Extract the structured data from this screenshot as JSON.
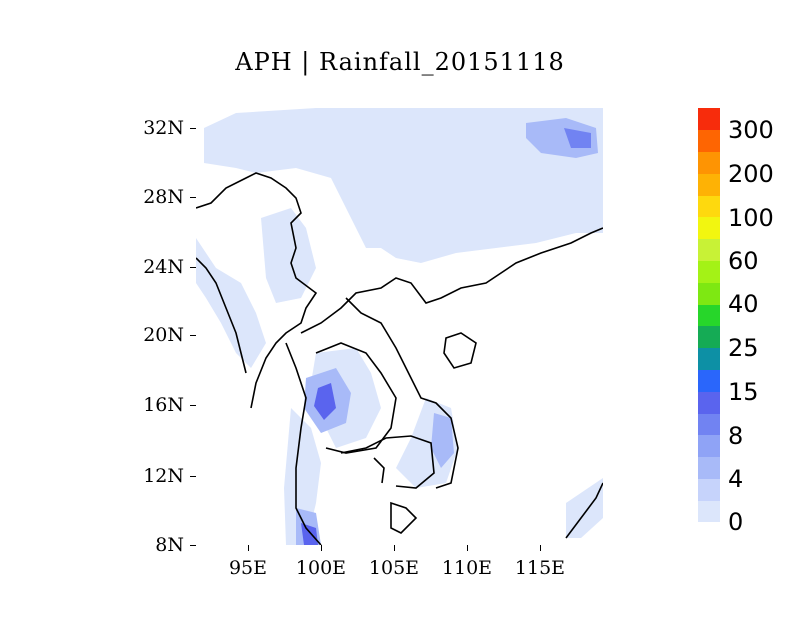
{
  "title": "APH | Rainfall_20151118",
  "y_axis": {
    "ticks": [
      "8N",
      "12N",
      "16N",
      "20N",
      "24N",
      "28N",
      "32N"
    ]
  },
  "x_axis": {
    "ticks": [
      "95E",
      "100E",
      "105E",
      "110E",
      "115E"
    ]
  },
  "colorbar": {
    "labels": [
      "0",
      "4",
      "8",
      "15",
      "25",
      "40",
      "60",
      "100",
      "200",
      "300"
    ],
    "colors": [
      "#dce6fb",
      "#c6d3fb",
      "#a8baf8",
      "#8fa3f6",
      "#7183f2",
      "#5a64ee",
      "#2a66fb",
      "#0d90a5",
      "#15ab55",
      "#27d62a",
      "#7ee812",
      "#a4f216",
      "#c8f236",
      "#f2f610",
      "#fed90e",
      "#feb205",
      "#fe9403",
      "#fe6502",
      "#f72c0c"
    ]
  },
  "colors": {
    "light_rain": "#dce6fb",
    "mid_rain": "#a8baf8",
    "heavy_rain": "#5a64ee",
    "coastline": "#000000"
  }
}
